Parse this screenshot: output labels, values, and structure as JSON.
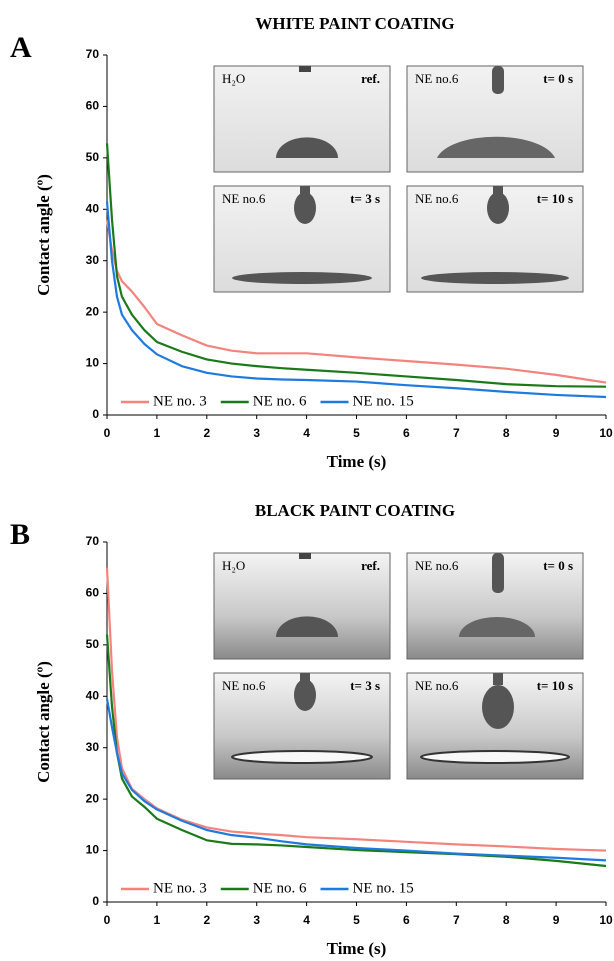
{
  "chart_data": [
    {
      "type": "line",
      "panel": "A",
      "title": "WHITE PAINT COATING",
      "x_label": "Time (s)",
      "y_label": "Contact angle (º)",
      "x": [
        0,
        0.1,
        0.2,
        0.3,
        0.5,
        0.75,
        1,
        1.5,
        2,
        2.5,
        3,
        3.5,
        4,
        5,
        6,
        7,
        8,
        9,
        10
      ],
      "series": [
        {
          "name": "NE no. 3",
          "color": "#f4837d",
          "values": [
            38,
            32,
            28,
            26,
            24,
            21,
            17.7,
            15.5,
            13.5,
            12.5,
            12,
            12,
            12,
            11.2,
            10.5,
            9.8,
            9,
            7.8,
            6.3
          ]
        },
        {
          "name": "NE no. 6",
          "color": "#1a7a1a",
          "values": [
            52.8,
            38,
            27,
            23,
            19.5,
            16.5,
            14.2,
            12.3,
            10.8,
            10,
            9.5,
            9.1,
            8.8,
            8.2,
            7.5,
            6.8,
            6,
            5.6,
            5.5
          ]
        },
        {
          "name": "NE no. 15",
          "color": "#1f7ae0",
          "values": [
            41.5,
            30,
            23,
            19.5,
            16.5,
            13.8,
            11.8,
            9.5,
            8.2,
            7.5,
            7.1,
            6.9,
            6.8,
            6.5,
            5.8,
            5.2,
            4.5,
            3.9,
            3.5
          ]
        }
      ],
      "xlim": [
        0,
        10
      ],
      "xticks": [
        0,
        1,
        2,
        3,
        4,
        5,
        6,
        7,
        8,
        9,
        10
      ],
      "ylim": [
        0,
        70
      ],
      "yticks": [
        0,
        10,
        20,
        30,
        40,
        50,
        60,
        70
      ],
      "legend": "bottom-left",
      "insets": [
        {
          "label": "H₂O",
          "time": "ref."
        },
        {
          "label": "NE no.6",
          "time": "t= 0 s"
        },
        {
          "label": "NE no.6",
          "time": "t= 3 s"
        },
        {
          "label": "NE no.6",
          "time": "t= 10 s"
        }
      ]
    },
    {
      "type": "line",
      "panel": "B",
      "title": "BLACK PAINT COATING",
      "x_label": "Time (s)",
      "y_label": "Contact angle (º)",
      "x": [
        0,
        0.1,
        0.2,
        0.3,
        0.5,
        0.75,
        1,
        1.5,
        2,
        2.5,
        3,
        3.5,
        4,
        5,
        6,
        7,
        8,
        9,
        10
      ],
      "series": [
        {
          "name": "NE no. 3",
          "color": "#f4837d",
          "values": [
            65,
            45,
            32,
            26,
            22,
            20,
            18.2,
            16,
            14.5,
            13.7,
            13.3,
            13,
            12.6,
            12.2,
            11.7,
            11.2,
            10.8,
            10.3,
            10
          ]
        },
        {
          "name": "NE no. 6",
          "color": "#1a7a1a",
          "values": [
            52,
            38,
            29,
            24,
            20.5,
            18.5,
            16.2,
            14,
            12,
            11.3,
            11.2,
            11,
            10.7,
            10.1,
            9.7,
            9.3,
            8.8,
            8,
            7
          ]
        },
        {
          "name": "NE no. 15",
          "color": "#1f7ae0",
          "values": [
            39.5,
            34,
            29,
            25,
            21.8,
            19.6,
            18,
            15.8,
            14,
            13,
            12.5,
            11.8,
            11.2,
            10.5,
            10,
            9.4,
            9,
            8.6,
            8.1
          ]
        }
      ],
      "xlim": [
        0,
        10
      ],
      "xticks": [
        0,
        1,
        2,
        3,
        4,
        5,
        6,
        7,
        8,
        9,
        10
      ],
      "ylim": [
        0,
        70
      ],
      "yticks": [
        0,
        10,
        20,
        30,
        40,
        50,
        60,
        70
      ],
      "legend": "bottom-left",
      "insets": [
        {
          "label": "H₂O",
          "time": "ref."
        },
        {
          "label": "NE no.6",
          "time": "t= 0 s"
        },
        {
          "label": "NE no.6",
          "time": "t= 3 s"
        },
        {
          "label": "NE no.6",
          "time": "t= 10 s"
        }
      ]
    }
  ]
}
